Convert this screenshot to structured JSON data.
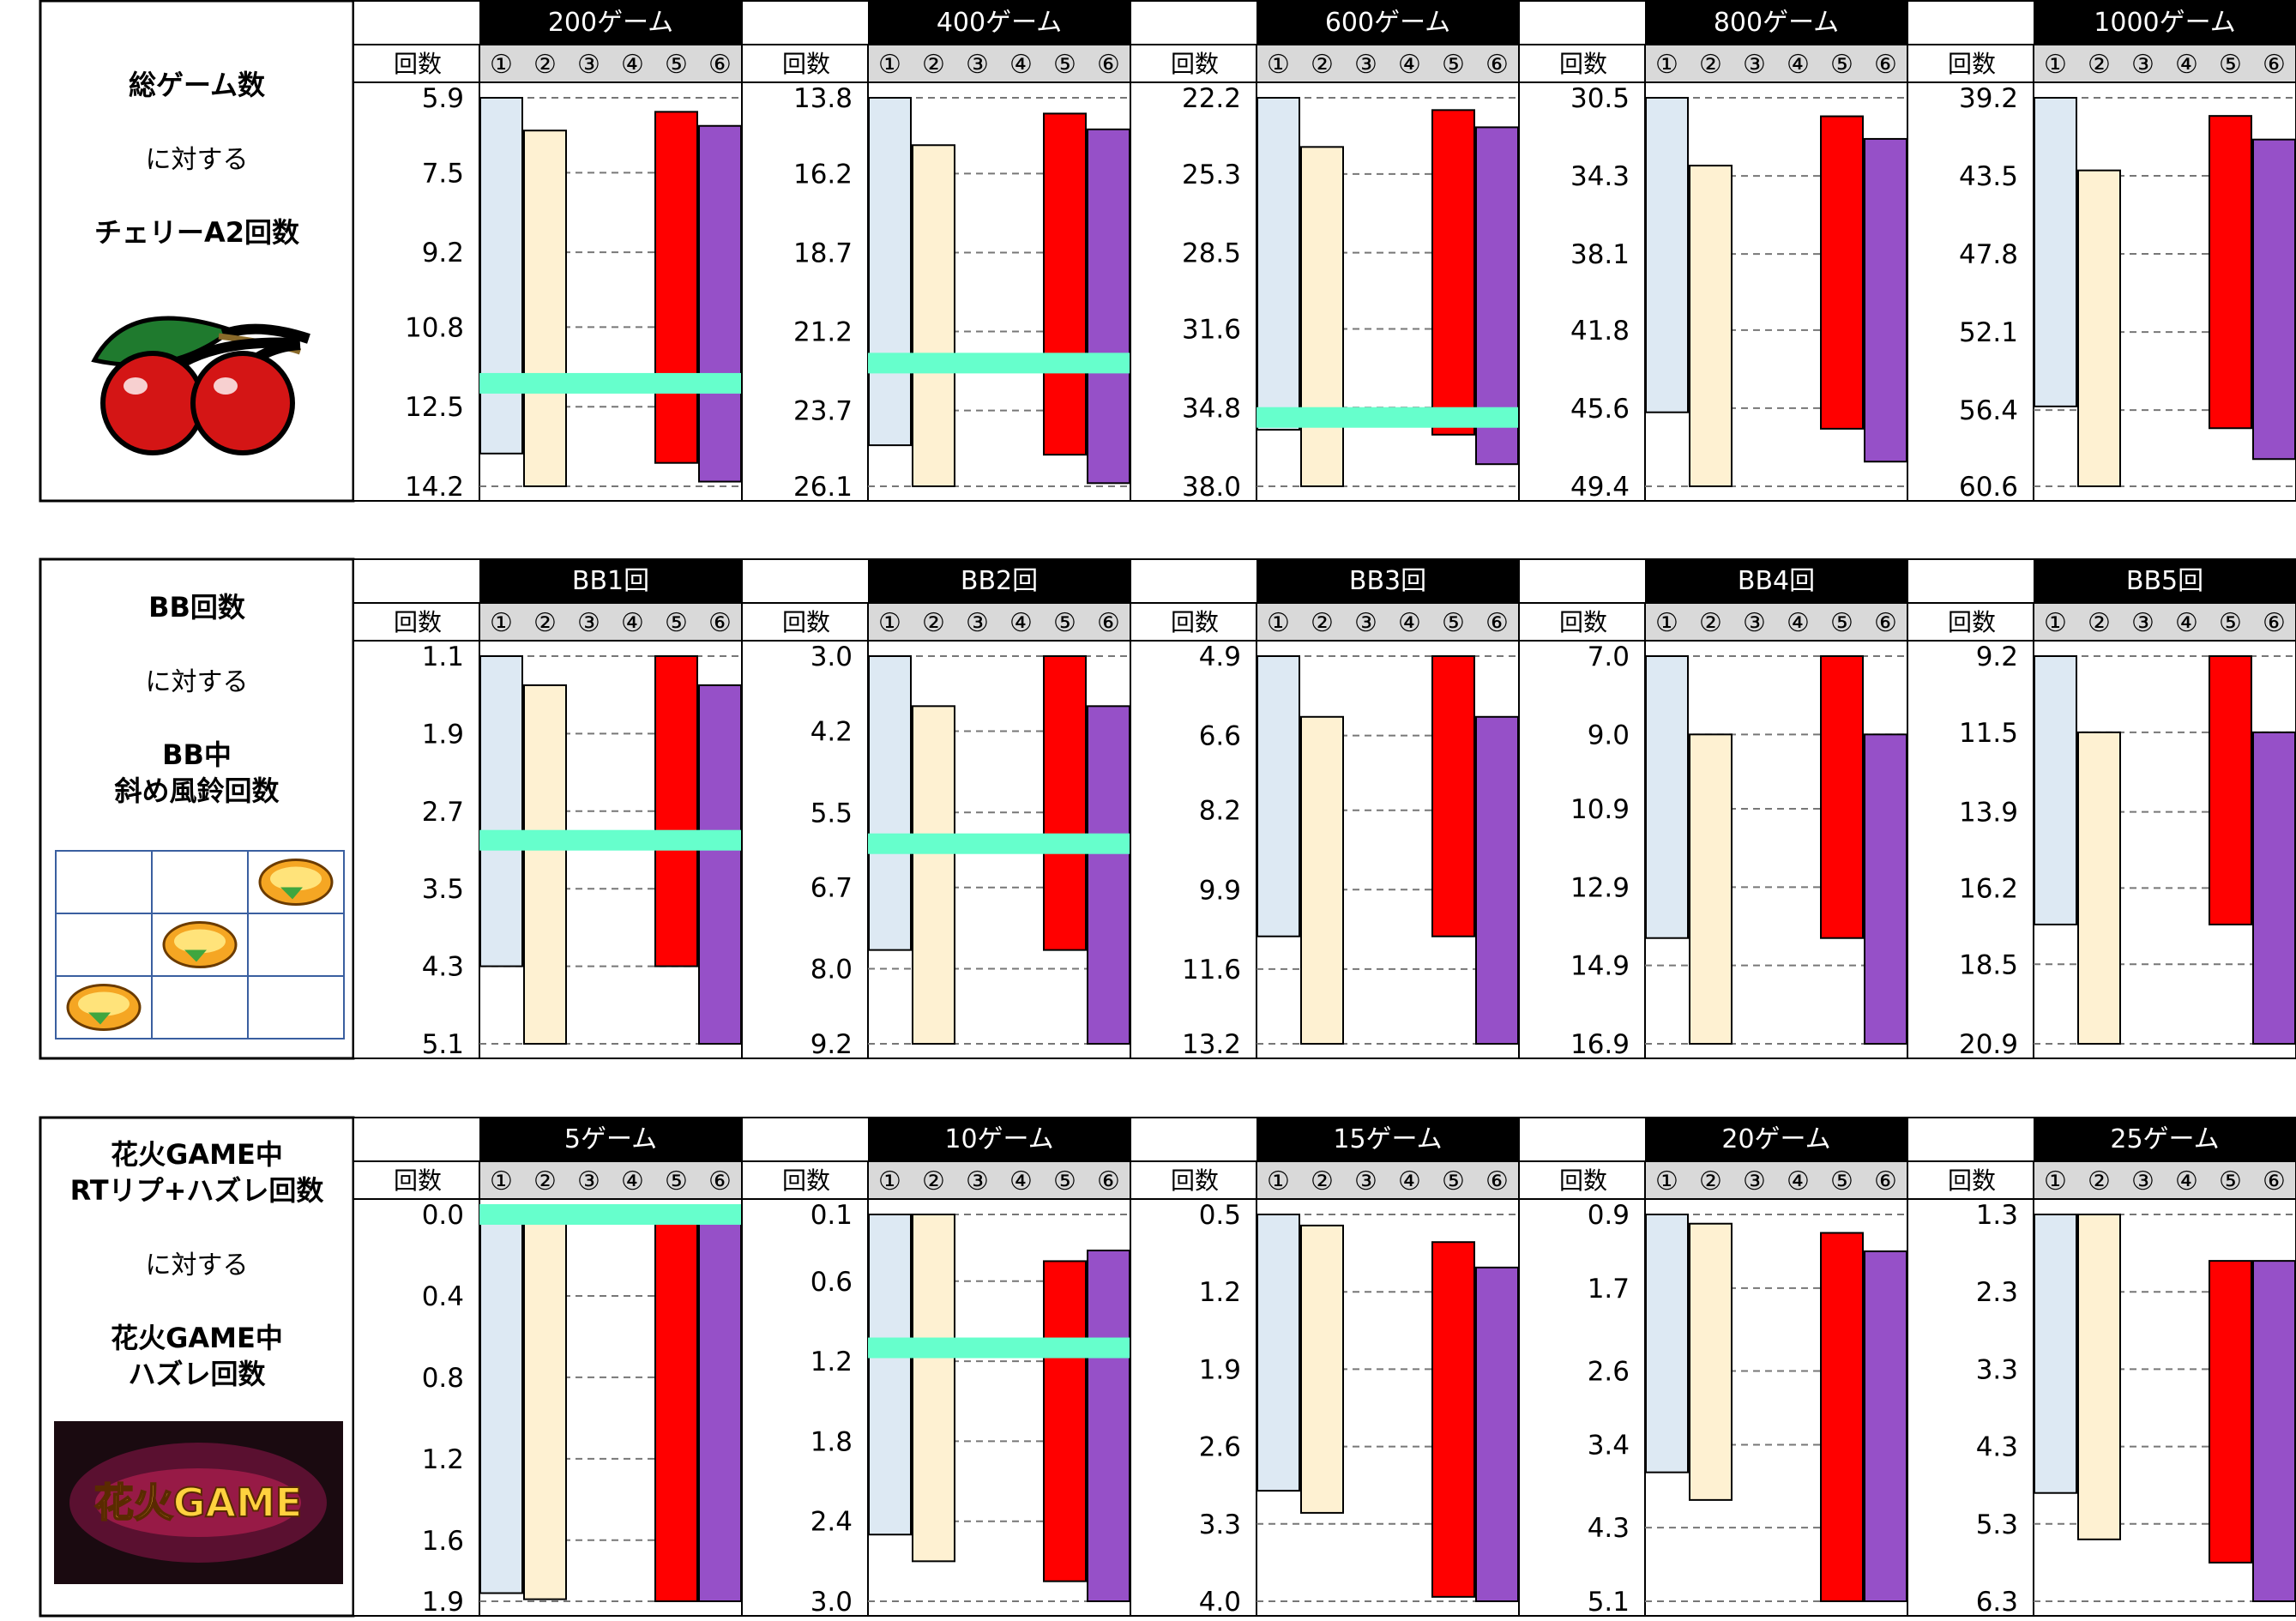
{
  "settings_labels": [
    "①",
    "②",
    "③",
    "④",
    "⑤",
    "⑥"
  ],
  "count_header": "回数",
  "colors": {
    "setting1": "#dde9f3",
    "setting2": "#fef1d2",
    "setting5": "#ff0000",
    "setting6": "#9650c8",
    "marker": "#66ffcc",
    "header_bg": "#000000",
    "subheader_bg": "#d9d9d9"
  },
  "sections": [
    {
      "left_panel": {
        "title": "総ゲーム数",
        "connector": "に対する",
        "subtitle": "チェリーA2回数",
        "image": "cherry-icon"
      },
      "chart_data": {
        "type": "bar",
        "bar_style": "floating range per setting",
        "series_names": [
          "①",
          "②",
          "③",
          "④",
          "⑤",
          "⑥"
        ],
        "panels": [
          {
            "label": "200ゲーム",
            "yticks": [
              5.9,
              7.5,
              9.2,
              10.8,
              12.5,
              14.2
            ],
            "ylim": [
              5.9,
              14.2
            ],
            "inverted": true,
            "bars": [
              {
                "setting": 1,
                "from": 5.9,
                "to": 13.5
              },
              {
                "setting": 2,
                "from": 6.6,
                "to": 14.2
              },
              {
                "setting": 5,
                "from": 6.2,
                "to": 13.7
              },
              {
                "setting": 6,
                "from": 6.5,
                "to": 14.1
              }
            ],
            "marker": 12.0
          },
          {
            "label": "400ゲーム",
            "yticks": [
              13.8,
              16.2,
              18.7,
              21.2,
              23.7,
              26.1
            ],
            "ylim": [
              13.8,
              26.1
            ],
            "inverted": true,
            "bars": [
              {
                "setting": 1,
                "from": 13.8,
                "to": 24.8
              },
              {
                "setting": 2,
                "from": 15.3,
                "to": 26.1
              },
              {
                "setting": 5,
                "from": 14.3,
                "to": 25.1
              },
              {
                "setting": 6,
                "from": 14.8,
                "to": 26.0
              }
            ],
            "marker": 22.2
          },
          {
            "label": "600ゲーム",
            "yticks": [
              22.2,
              25.3,
              28.5,
              31.6,
              34.8,
              38.0
            ],
            "ylim": [
              22.2,
              38.0
            ],
            "inverted": true,
            "bars": [
              {
                "setting": 1,
                "from": 22.2,
                "to": 35.7
              },
              {
                "setting": 2,
                "from": 24.2,
                "to": 38.0
              },
              {
                "setting": 5,
                "from": 22.7,
                "to": 35.9
              },
              {
                "setting": 6,
                "from": 23.4,
                "to": 37.1
              }
            ],
            "marker": 35.2
          },
          {
            "label": "800ゲーム",
            "yticks": [
              30.5,
              34.3,
              38.1,
              41.8,
              45.6,
              49.4
            ],
            "ylim": [
              30.5,
              49.4
            ],
            "inverted": true,
            "bars": [
              {
                "setting": 1,
                "from": 30.5,
                "to": 45.8
              },
              {
                "setting": 2,
                "from": 33.8,
                "to": 49.4
              },
              {
                "setting": 5,
                "from": 31.4,
                "to": 46.6
              },
              {
                "setting": 6,
                "from": 32.5,
                "to": 48.2
              }
            ],
            "marker": null
          },
          {
            "label": "1000ゲーム",
            "yticks": [
              39.2,
              43.5,
              47.8,
              52.1,
              56.4,
              60.6
            ],
            "ylim": [
              39.2,
              60.6
            ],
            "inverted": true,
            "bars": [
              {
                "setting": 1,
                "from": 39.2,
                "to": 56.2
              },
              {
                "setting": 2,
                "from": 43.2,
                "to": 60.6
              },
              {
                "setting": 5,
                "from": 40.2,
                "to": 57.4
              },
              {
                "setting": 6,
                "from": 41.5,
                "to": 59.1
              }
            ],
            "marker": null
          }
        ]
      }
    },
    {
      "left_panel": {
        "title": "BB回数",
        "connector": "に対する",
        "subtitle": "BB中\n斜め風鈴回数",
        "image": "bell-reel-diagram"
      },
      "chart_data": {
        "type": "bar",
        "bar_style": "floating range per setting",
        "series_names": [
          "①",
          "②",
          "③",
          "④",
          "⑤",
          "⑥"
        ],
        "panels": [
          {
            "label": "BB1回",
            "yticks": [
              1.1,
              1.9,
              2.7,
              3.5,
              4.3,
              5.1
            ],
            "ylim": [
              1.1,
              5.1
            ],
            "inverted": true,
            "bars": [
              {
                "setting": 1,
                "from": 1.1,
                "to": 4.3
              },
              {
                "setting": 2,
                "from": 1.4,
                "to": 5.1
              },
              {
                "setting": 5,
                "from": 1.1,
                "to": 4.3
              },
              {
                "setting": 6,
                "from": 1.4,
                "to": 5.1
              }
            ],
            "marker": 3.0
          },
          {
            "label": "BB2回",
            "yticks": [
              3.0,
              4.2,
              5.5,
              6.7,
              8.0,
              9.2
            ],
            "ylim": [
              3.0,
              9.2
            ],
            "inverted": true,
            "bars": [
              {
                "setting": 1,
                "from": 3.0,
                "to": 7.7
              },
              {
                "setting": 2,
                "from": 3.8,
                "to": 9.2
              },
              {
                "setting": 5,
                "from": 3.0,
                "to": 7.7
              },
              {
                "setting": 6,
                "from": 3.8,
                "to": 9.2
              }
            ],
            "marker": 6.0
          },
          {
            "label": "BB3回",
            "yticks": [
              4.9,
              6.6,
              8.2,
              9.9,
              11.6,
              13.2
            ],
            "ylim": [
              4.9,
              13.2
            ],
            "inverted": true,
            "bars": [
              {
                "setting": 1,
                "from": 4.9,
                "to": 10.9
              },
              {
                "setting": 2,
                "from": 6.2,
                "to": 13.2
              },
              {
                "setting": 5,
                "from": 4.9,
                "to": 10.9
              },
              {
                "setting": 6,
                "from": 6.2,
                "to": 13.2
              }
            ],
            "marker": null
          },
          {
            "label": "BB4回",
            "yticks": [
              7.0,
              9.0,
              10.9,
              12.9,
              14.9,
              16.9
            ],
            "ylim": [
              7.0,
              16.9
            ],
            "inverted": true,
            "bars": [
              {
                "setting": 1,
                "from": 7.0,
                "to": 14.2
              },
              {
                "setting": 2,
                "from": 9.0,
                "to": 16.9
              },
              {
                "setting": 5,
                "from": 7.0,
                "to": 14.2
              },
              {
                "setting": 6,
                "from": 9.0,
                "to": 16.9
              }
            ],
            "marker": null
          },
          {
            "label": "BB5回",
            "yticks": [
              9.2,
              11.5,
              13.9,
              16.2,
              18.5,
              20.9
            ],
            "ylim": [
              9.2,
              20.9
            ],
            "inverted": true,
            "bars": [
              {
                "setting": 1,
                "from": 9.2,
                "to": 17.3
              },
              {
                "setting": 2,
                "from": 11.5,
                "to": 20.9
              },
              {
                "setting": 5,
                "from": 9.2,
                "to": 17.3
              },
              {
                "setting": 6,
                "from": 11.5,
                "to": 20.9
              }
            ],
            "marker": null
          }
        ]
      }
    },
    {
      "left_panel": {
        "title": "花火GAME中\nRTリプ+ハズレ回数",
        "connector": "に対する",
        "subtitle": "花火GAME中\nハズレ回数",
        "image": "hanabi-game-logo",
        "logo_text": "花火GAME"
      },
      "chart_data": {
        "type": "bar",
        "bar_style": "floating range per setting",
        "series_names": [
          "①",
          "②",
          "③",
          "④",
          "⑤",
          "⑥"
        ],
        "panels": [
          {
            "label": "5ゲーム",
            "yticks": [
              0.0,
              0.4,
              0.8,
              1.2,
              1.6,
              1.9
            ],
            "ylim": [
              0.0,
              1.9
            ],
            "inverted": true,
            "bars": [
              {
                "setting": 1,
                "from": 0.0,
                "to": 1.86
              },
              {
                "setting": 2,
                "from": 0.0,
                "to": 1.89
              },
              {
                "setting": 5,
                "from": 0.0,
                "to": 1.9
              },
              {
                "setting": 6,
                "from": 0.0,
                "to": 1.9
              }
            ],
            "marker": 0.0
          },
          {
            "label": "10ゲーム",
            "yticks": [
              0.1,
              0.6,
              1.2,
              1.8,
              2.4,
              3.0
            ],
            "ylim": [
              0.1,
              3.0
            ],
            "inverted": true,
            "bars": [
              {
                "setting": 1,
                "from": 0.1,
                "to": 2.5
              },
              {
                "setting": 2,
                "from": 0.1,
                "to": 2.7
              },
              {
                "setting": 5,
                "from": 0.45,
                "to": 2.85
              },
              {
                "setting": 6,
                "from": 0.37,
                "to": 3.0
              }
            ],
            "marker": 1.1
          },
          {
            "label": "15ゲーム",
            "yticks": [
              0.5,
              1.2,
              1.9,
              2.6,
              3.3,
              4.0
            ],
            "ylim": [
              0.5,
              4.0
            ],
            "inverted": true,
            "bars": [
              {
                "setting": 1,
                "from": 0.5,
                "to": 3.0
              },
              {
                "setting": 2,
                "from": 0.6,
                "to": 3.2
              },
              {
                "setting": 5,
                "from": 0.75,
                "to": 3.96
              },
              {
                "setting": 6,
                "from": 0.98,
                "to": 4.0
              }
            ],
            "marker": null
          },
          {
            "label": "20ゲーム",
            "yticks": [
              0.9,
              1.7,
              2.6,
              3.4,
              4.3,
              5.1
            ],
            "ylim": [
              0.9,
              5.1
            ],
            "inverted": true,
            "bars": [
              {
                "setting": 1,
                "from": 0.9,
                "to": 3.7
              },
              {
                "setting": 2,
                "from": 1.0,
                "to": 4.0
              },
              {
                "setting": 5,
                "from": 1.1,
                "to": 5.1
              },
              {
                "setting": 6,
                "from": 1.3,
                "to": 5.1
              }
            ],
            "marker": null
          },
          {
            "label": "25ゲーム",
            "yticks": [
              1.3,
              2.3,
              3.3,
              4.3,
              5.3,
              6.3
            ],
            "ylim": [
              1.3,
              6.3
            ],
            "inverted": true,
            "bars": [
              {
                "setting": 1,
                "from": 1.3,
                "to": 4.9
              },
              {
                "setting": 2,
                "from": 1.3,
                "to": 5.5
              },
              {
                "setting": 5,
                "from": 1.9,
                "to": 5.8
              },
              {
                "setting": 6,
                "from": 1.9,
                "to": 6.3
              }
            ],
            "marker": null
          }
        ]
      }
    }
  ]
}
